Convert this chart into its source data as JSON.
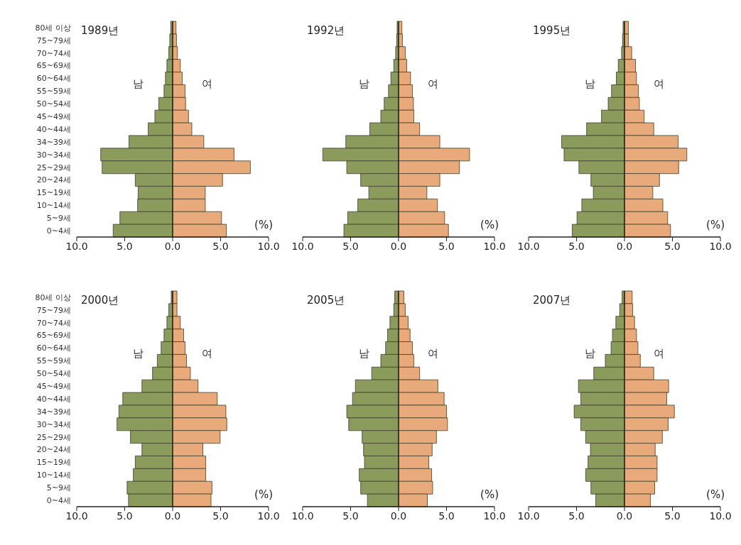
{
  "chart_data": [
    {
      "type": "bar",
      "orientation": "horizontal",
      "stacked": true,
      "title": "1989년",
      "annotations": [
        "(%)"
      ],
      "categories": [
        "80세 이상",
        "75~79세",
        "70~74세",
        "65~69세",
        "60~64세",
        "55~59세",
        "50~54세",
        "45~49세",
        "40~44세",
        "34~39세",
        "30~34세",
        "25~29세",
        "20~24세",
        "15~19세",
        "10~14세",
        "5~9세",
        "0~4세"
      ],
      "series": [
        {
          "name": "남",
          "color": "#8a9b5c",
          "values": [
            -0.2,
            -0.3,
            -0.4,
            -0.6,
            -0.75,
            -0.9,
            -1.45,
            -1.85,
            -2.55,
            -4.55,
            -7.5,
            -7.35,
            -3.9,
            -3.6,
            -3.65,
            -5.5,
            -6.2
          ]
        },
        {
          "name": "여",
          "color": "#e9aa7b",
          "values": [
            0.35,
            0.4,
            0.5,
            0.8,
            1.0,
            1.3,
            1.35,
            1.65,
            2.0,
            3.25,
            6.4,
            8.1,
            5.2,
            3.4,
            3.4,
            5.1,
            5.6
          ]
        }
      ],
      "xlim": [
        -10,
        10
      ],
      "xticks": [
        {
          "value": -10,
          "label": "10.0"
        },
        {
          "value": -5,
          "label": "5.0"
        },
        {
          "value": 0,
          "label": "0.0"
        },
        {
          "value": 5,
          "label": "5.0"
        },
        {
          "value": 10,
          "label": "10.0"
        }
      ],
      "ref_lines": [
        {
          "axis": "x",
          "value": 0,
          "color": "#2a2a1a"
        }
      ]
    },
    {
      "type": "bar",
      "orientation": "horizontal",
      "stacked": true,
      "title": "1992년",
      "annotations": [
        "(%)"
      ],
      "tick_labels": "x",
      "categories": [
        null,
        null,
        null,
        null,
        null,
        null,
        null,
        null,
        null,
        null,
        null,
        null,
        null,
        null,
        null,
        null,
        null
      ],
      "series": [
        {
          "name": "남",
          "color": "#8a9b5c",
          "values": [
            -0.15,
            -0.2,
            -0.3,
            -0.5,
            -0.8,
            -1.05,
            -1.5,
            -1.85,
            -3.0,
            -5.5,
            -7.9,
            -5.4,
            -3.95,
            -3.1,
            -4.25,
            -5.3,
            -5.7
          ]
        },
        {
          "name": "여",
          "color": "#e9aa7b",
          "values": [
            0.35,
            0.4,
            0.7,
            0.85,
            1.25,
            1.45,
            1.55,
            1.6,
            2.2,
            4.3,
            7.4,
            6.35,
            4.3,
            2.95,
            4.05,
            4.8,
            5.2
          ]
        }
      ],
      "xlim": [
        -10,
        10
      ],
      "xticks": [
        {
          "value": -10,
          "label": "10.0"
        },
        {
          "value": -5,
          "label": "5.0"
        },
        {
          "value": 0,
          "label": "0.0"
        },
        {
          "value": 5,
          "label": "5.0"
        },
        {
          "value": 10,
          "label": "10.0"
        }
      ],
      "ref_lines": [
        {
          "axis": "x",
          "value": 0,
          "color": "#2a2a1a"
        }
      ]
    },
    {
      "type": "bar",
      "orientation": "horizontal",
      "stacked": true,
      "title": "1995년",
      "annotations": [
        "(%)"
      ],
      "tick_labels": "x",
      "categories": [
        null,
        null,
        null,
        null,
        null,
        null,
        null,
        null,
        null,
        null,
        null,
        null,
        null,
        null,
        null,
        null,
        null
      ],
      "series": [
        {
          "name": "남",
          "color": "#8a9b5c",
          "values": [
            -0.15,
            -0.2,
            -0.3,
            -0.65,
            -0.85,
            -1.35,
            -1.7,
            -2.4,
            -3.95,
            -6.55,
            -6.3,
            -4.75,
            -3.5,
            -3.25,
            -4.45,
            -4.95,
            -5.45
          ]
        },
        {
          "name": "여",
          "color": "#e9aa7b",
          "values": [
            0.4,
            0.4,
            0.75,
            1.15,
            1.25,
            1.45,
            1.55,
            2.05,
            3.05,
            5.6,
            6.5,
            5.65,
            3.65,
            2.95,
            4.0,
            4.5,
            4.8
          ]
        }
      ],
      "xlim": [
        -10,
        10
      ],
      "xticks": [
        {
          "value": -10,
          "label": "10.0"
        },
        {
          "value": -5,
          "label": "5.0"
        },
        {
          "value": 0,
          "label": "0.0"
        },
        {
          "value": 5,
          "label": "5.0"
        },
        {
          "value": 10,
          "label": "10.0"
        }
      ],
      "ref_lines": [
        {
          "axis": "x",
          "value": 0,
          "color": "#2a2a1a"
        }
      ]
    },
    {
      "type": "bar",
      "orientation": "horizontal",
      "stacked": true,
      "title": "2000년",
      "annotations": [
        "(%)"
      ],
      "categories": [
        "80세 이상",
        "75~79세",
        "70~74세",
        "65~69세",
        "60~64세",
        "55~59세",
        "50~54세",
        "45~49세",
        "40~44세",
        "34~39세",
        "30~34세",
        "25~29세",
        "20~24세",
        "15~19세",
        "10~14세",
        "5~9세",
        "0~4세"
      ],
      "series": [
        {
          "name": "남",
          "color": "#8a9b5c",
          "values": [
            -0.15,
            -0.4,
            -0.6,
            -0.9,
            -1.2,
            -1.6,
            -2.1,
            -3.2,
            -5.2,
            -5.6,
            -5.8,
            -4.4,
            -3.2,
            -3.9,
            -4.1,
            -4.75,
            -4.6
          ]
        },
        {
          "name": "여",
          "color": "#e9aa7b",
          "values": [
            0.45,
            0.45,
            0.8,
            1.15,
            1.3,
            1.45,
            1.85,
            2.65,
            4.65,
            5.55,
            5.65,
            4.95,
            3.15,
            3.45,
            3.45,
            4.1,
            4.0
          ]
        }
      ],
      "xlim": [
        -10,
        10
      ],
      "xticks": [
        {
          "value": -10,
          "label": "10.0"
        },
        {
          "value": -5,
          "label": "5.0"
        },
        {
          "value": 0,
          "label": "0.0"
        },
        {
          "value": 5,
          "label": "5.0"
        },
        {
          "value": 10,
          "label": "10.0"
        }
      ],
      "ref_lines": [
        {
          "axis": "x",
          "value": 0,
          "color": "#2a2a1a"
        }
      ]
    },
    {
      "type": "bar",
      "orientation": "horizontal",
      "stacked": true,
      "title": "2005년",
      "annotations": [
        "(%)"
      ],
      "tick_labels": "x",
      "categories": [
        null,
        null,
        null,
        null,
        null,
        null,
        null,
        null,
        null,
        null,
        null,
        null,
        null,
        null,
        null,
        null,
        null
      ],
      "series": [
        {
          "name": "남",
          "color": "#8a9b5c",
          "values": [
            -0.4,
            -0.5,
            -0.9,
            -1.15,
            -1.35,
            -1.85,
            -2.8,
            -4.5,
            -4.8,
            -5.4,
            -5.2,
            -3.8,
            -3.65,
            -3.55,
            -4.1,
            -3.95,
            -3.25
          ]
        },
        {
          "name": "여",
          "color": "#e9aa7b",
          "values": [
            0.55,
            0.7,
            1.0,
            1.2,
            1.45,
            1.6,
            2.2,
            4.1,
            4.75,
            5.0,
            5.1,
            3.95,
            3.5,
            3.15,
            3.45,
            3.55,
            3.0
          ]
        }
      ],
      "xlim": [
        -10,
        10
      ],
      "xticks": [
        {
          "value": -10,
          "label": "10.0"
        },
        {
          "value": -5,
          "label": "5.0"
        },
        {
          "value": 0,
          "label": "0.0"
        },
        {
          "value": 5,
          "label": "5.0"
        },
        {
          "value": 10,
          "label": "10.0"
        }
      ],
      "ref_lines": [
        {
          "axis": "x",
          "value": 0,
          "color": "#2a2a1a"
        }
      ]
    },
    {
      "type": "bar",
      "orientation": "horizontal",
      "stacked": true,
      "title": "2007년",
      "annotations": [
        "(%)"
      ],
      "tick_labels": "x",
      "categories": [
        null,
        null,
        null,
        null,
        null,
        null,
        null,
        null,
        null,
        null,
        null,
        null,
        null,
        null,
        null,
        null,
        null
      ],
      "series": [
        {
          "name": "남",
          "color": "#8a9b5c",
          "values": [
            -0.25,
            -0.5,
            -0.9,
            -1.25,
            -1.4,
            -2.0,
            -3.2,
            -4.8,
            -4.55,
            -5.25,
            -4.55,
            -4.05,
            -3.55,
            -3.8,
            -4.05,
            -3.5,
            -3.0
          ]
        },
        {
          "name": "여",
          "color": "#e9aa7b",
          "values": [
            0.8,
            0.85,
            1.05,
            1.25,
            1.4,
            1.65,
            3.05,
            4.6,
            4.4,
            5.2,
            4.55,
            3.95,
            3.2,
            3.4,
            3.4,
            3.15,
            2.7
          ]
        }
      ],
      "xlim": [
        -10,
        10
      ],
      "xticks": [
        {
          "value": -10,
          "label": "10.0"
        },
        {
          "value": -5,
          "label": "5.0"
        },
        {
          "value": 0,
          "label": "0.0"
        },
        {
          "value": 5,
          "label": "5.0"
        },
        {
          "value": 10,
          "label": "10.0"
        }
      ],
      "ref_lines": [
        {
          "axis": "x",
          "value": 0,
          "color": "#2a2a1a"
        }
      ]
    }
  ]
}
